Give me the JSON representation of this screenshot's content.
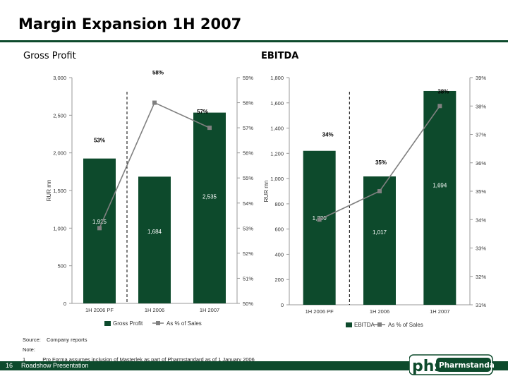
{
  "title": "Margin Expansion 1H 2007",
  "chart_data": [
    {
      "type": "bar",
      "subtitle": "Gross Profit",
      "categories": [
        "1H 2006 PF",
        "1H 2006",
        "1H 2007"
      ],
      "bar_values": [
        1925,
        1684,
        2535
      ],
      "bar_labels": [
        "1,925",
        "1,684",
        "2,535"
      ],
      "line_values": [
        53,
        58,
        57
      ],
      "line_labels": [
        "53%",
        "58%",
        "57%"
      ],
      "ylabel": "RUR mn",
      "ylim": [
        0,
        3000
      ],
      "y_ticks": [
        0,
        500,
        1000,
        1500,
        2000,
        2500,
        3000
      ],
      "y_tick_labels": [
        "0",
        "500",
        "1,000",
        "1,500",
        "2,000",
        "2,500",
        "3,000"
      ],
      "y2lim": [
        50,
        59
      ],
      "y2_ticks": [
        50,
        51,
        52,
        53,
        54,
        55,
        56,
        57,
        58,
        59
      ],
      "y2_tick_labels": [
        "50%",
        "51%",
        "52%",
        "53%",
        "54%",
        "55%",
        "56%",
        "57%",
        "58%",
        "59%"
      ],
      "legend": [
        "Gross Profit",
        "As % of Sales"
      ]
    },
    {
      "type": "bar",
      "subtitle": "EBITDA",
      "categories": [
        "1H 2006 PF",
        "1H 2006",
        "1H 2007"
      ],
      "bar_values": [
        1220,
        1017,
        1694
      ],
      "bar_labels": [
        "1,220",
        "1,017",
        "1,694"
      ],
      "line_values": [
        34,
        35,
        38
      ],
      "line_labels": [
        "34%",
        "35%",
        "38%"
      ],
      "ylabel": "RUR mn",
      "ylim": [
        0,
        1800
      ],
      "y_ticks": [
        0,
        200,
        400,
        600,
        800,
        1000,
        1200,
        1400,
        1600,
        1800
      ],
      "y_tick_labels": [
        "0",
        "200",
        "400",
        "600",
        "800",
        "1,000",
        "1,200",
        "1,400",
        "1,600",
        "1,800"
      ],
      "y2lim": [
        31,
        39
      ],
      "y2_ticks": [
        31,
        32,
        33,
        34,
        35,
        36,
        37,
        38,
        39
      ],
      "y2_tick_labels": [
        "31%",
        "32%",
        "33%",
        "34%",
        "35%",
        "36%",
        "37%",
        "38%",
        "39%"
      ],
      "legend": [
        "EBITDA",
        "As % of Sales"
      ]
    }
  ],
  "notes": {
    "source_label": "Source:",
    "source_text": "Company reports",
    "note_label": "Note:",
    "note_number": "1",
    "note_text": "Pro Forma assumes inclusion of Masterlek as part of Pharmstandard as of 1 January 2006"
  },
  "footer": {
    "page_number": "16",
    "text": "Roadshow Presentation"
  },
  "logo": {
    "mark": "phs",
    "name": "Pharmstandard"
  },
  "colors": {
    "bar": "#0d4a2c",
    "line": "#808080",
    "brand": "#0d4a2c"
  }
}
